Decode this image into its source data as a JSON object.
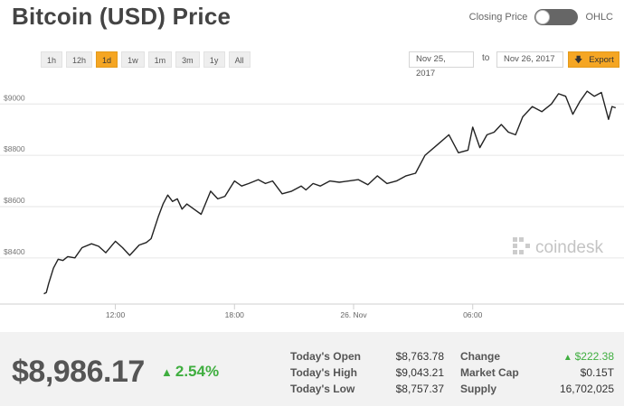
{
  "header": {
    "title": "Bitcoin (USD) Price",
    "toggle_left": "Closing Price",
    "toggle_right": "OHLC"
  },
  "range_buttons": [
    {
      "label": "1h",
      "active": false
    },
    {
      "label": "12h",
      "active": false
    },
    {
      "label": "1d",
      "active": true
    },
    {
      "label": "1w",
      "active": false
    },
    {
      "label": "1m",
      "active": false
    },
    {
      "label": "3m",
      "active": false
    },
    {
      "label": "1y",
      "active": false
    },
    {
      "label": "All",
      "active": false
    }
  ],
  "date_range": {
    "from": "Nov 25, 2017",
    "separator": "to",
    "to": "Nov 26, 2017",
    "export_label": "Export"
  },
  "watermark": "coindesk",
  "chart_data": {
    "type": "line",
    "x_unit": "hours",
    "x": [
      0,
      0.1,
      0.2,
      0.4,
      0.6,
      0.8,
      1.0,
      1.3,
      1.6,
      2.0,
      2.3,
      2.6,
      3.0,
      3.3,
      3.6,
      4.0,
      4.3,
      4.5,
      4.8,
      5.0,
      5.2,
      5.4,
      5.6,
      5.8,
      6.0,
      6.3,
      6.6,
      7.0,
      7.3,
      7.6,
      8.0,
      8.3,
      8.6,
      9.0,
      9.3,
      9.6,
      10.0,
      10.4,
      10.8,
      11.0,
      11.3,
      11.6,
      12.0,
      12.4,
      12.8,
      13.2,
      13.6,
      14.0,
      14.4,
      14.8,
      15.2,
      15.6,
      16.0,
      16.5,
      17.0,
      17.4,
      17.8,
      18.0,
      18.3,
      18.6,
      18.9,
      19.2,
      19.5,
      19.8,
      20.1,
      20.5,
      20.9,
      21.3,
      21.6,
      21.9,
      22.2,
      22.5,
      22.8,
      23.1,
      23.4,
      23.7,
      23.85,
      24.0
    ],
    "y": [
      8260,
      8265,
      8300,
      8360,
      8395,
      8390,
      8405,
      8400,
      8440,
      8455,
      8445,
      8420,
      8465,
      8440,
      8410,
      8450,
      8460,
      8475,
      8560,
      8610,
      8645,
      8620,
      8630,
      8590,
      8610,
      8590,
      8570,
      8660,
      8630,
      8640,
      8700,
      8680,
      8690,
      8705,
      8690,
      8700,
      8650,
      8660,
      8680,
      8665,
      8690,
      8680,
      8700,
      8695,
      8700,
      8705,
      8685,
      8720,
      8690,
      8700,
      8720,
      8730,
      8800,
      8840,
      8880,
      8810,
      8820,
      8910,
      8830,
      8880,
      8890,
      8920,
      8890,
      8880,
      8950,
      8990,
      8970,
      9000,
      9040,
      9030,
      8960,
      9010,
      9050,
      9030,
      9045,
      8940,
      8990,
      8985
    ],
    "ylim": [
      8220,
      9110
    ],
    "yticks": [
      8400,
      8600,
      8800,
      9000
    ],
    "ytick_labels": [
      "$8400",
      "$8600",
      "$8800",
      "$9000"
    ],
    "xlim": [
      -0.4,
      24.35
    ],
    "xticks": [
      3,
      8,
      13,
      18
    ],
    "xtick_labels": [
      "12:00",
      "18:00",
      "26. Nov",
      "06:00"
    ],
    "grid": true,
    "line_color": "#222222",
    "grid_color": "#e6e6e6"
  },
  "footer": {
    "price": "$8,986.17",
    "change_pct": "2.54%",
    "change_color": "#3fae3f",
    "stats_left": [
      {
        "label": "Today's Open",
        "value": "$8,763.78"
      },
      {
        "label": "Today's High",
        "value": "$9,043.21"
      },
      {
        "label": "Today's Low",
        "value": "$8,757.37"
      }
    ],
    "stats_right": [
      {
        "label": "Change",
        "value": "$222.38",
        "up": true
      },
      {
        "label": "Market Cap",
        "value": "$0.15T",
        "up": false
      },
      {
        "label": "Supply",
        "value": "16,702,025",
        "up": false
      }
    ]
  }
}
